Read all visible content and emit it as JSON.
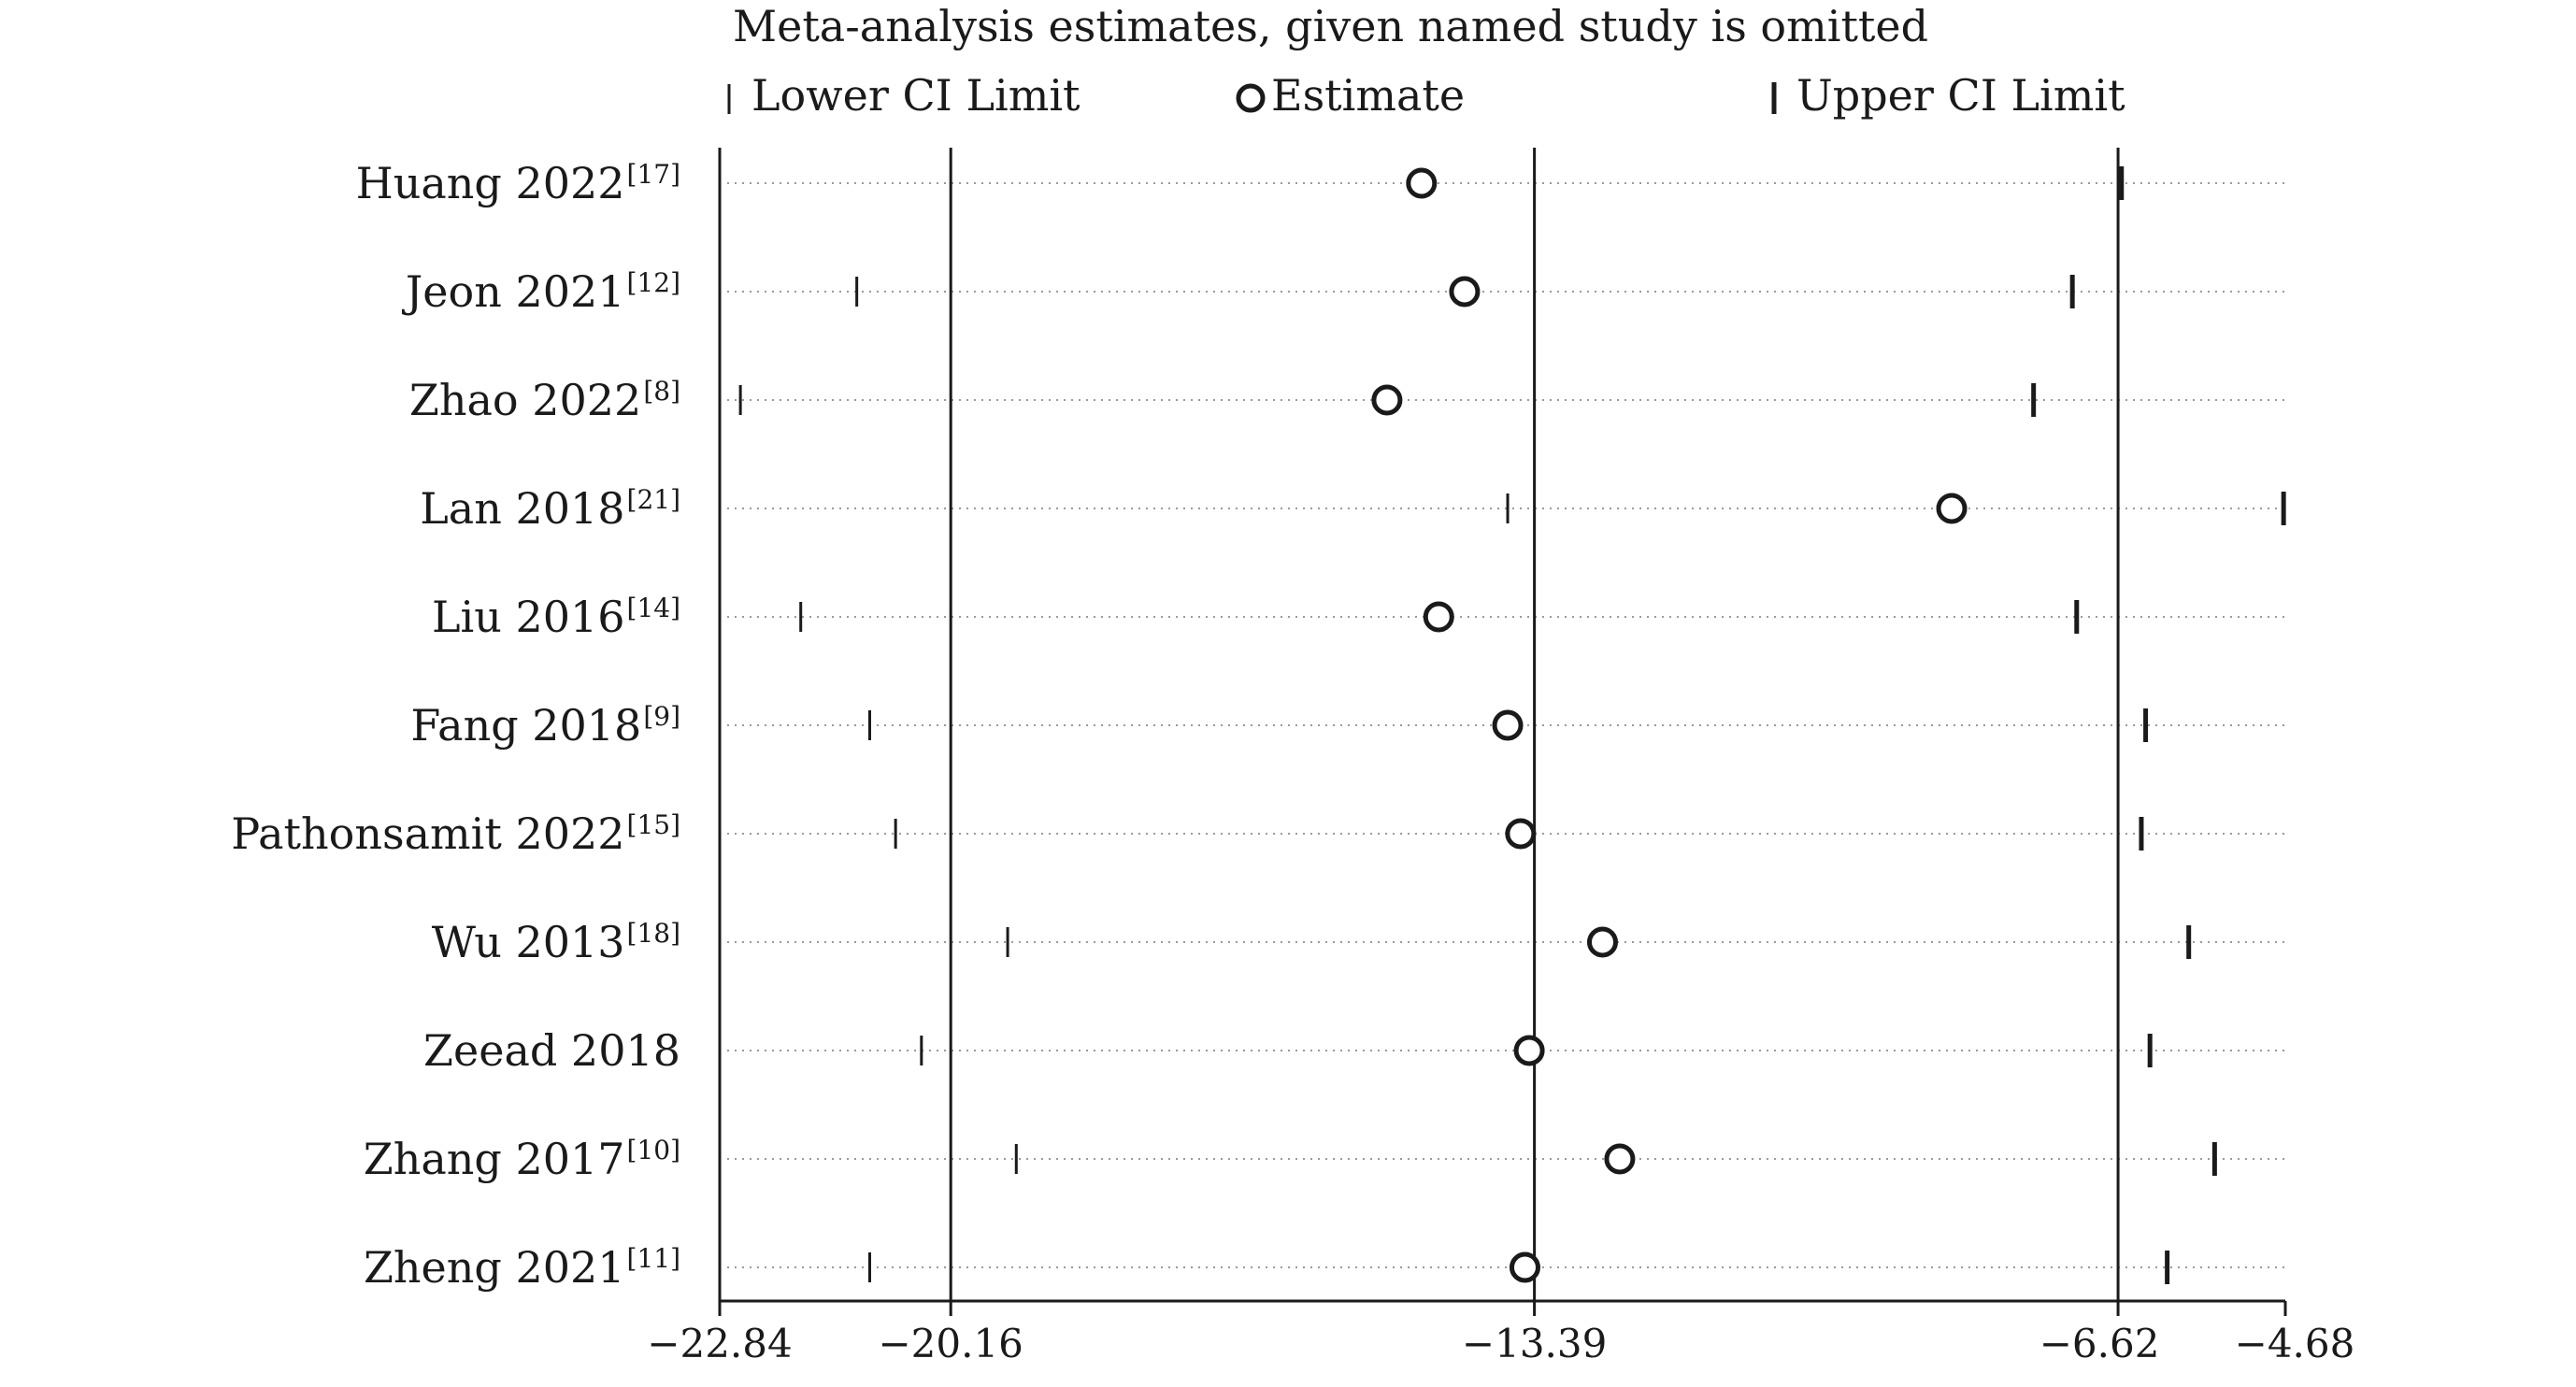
{
  "chart_data": {
    "type": "scatter",
    "title": "Meta-analysis estimates, given named study is omitted",
    "legend": {
      "placement": "top",
      "entries": [
        "Lower CI Limit",
        "Estimate",
        "Upper CI Limit"
      ]
    },
    "xlim": [
      -22.84,
      -4.68
    ],
    "x_ticks": [
      -22.84,
      -20.16,
      -13.39,
      -6.62,
      -4.68
    ],
    "x_tick_labels": [
      "−22.84",
      "−20.16",
      "−13.39",
      "−6.62",
      "−4.68"
    ],
    "reference_lines": [
      -20.16,
      -13.39,
      -6.62
    ],
    "grid": "dotted horizontal guides per study",
    "studies": [
      {
        "name": "Huang 2022",
        "ref": "[17]",
        "lower": -22.84,
        "estimate": -14.7,
        "upper": -6.58
      },
      {
        "name": "Jeon 2021",
        "ref": "[12]",
        "lower": -21.25,
        "estimate": -14.2,
        "upper": -7.15
      },
      {
        "name": "Zhao 2022",
        "ref": "[8]",
        "lower": -22.6,
        "estimate": -15.1,
        "upper": -7.6
      },
      {
        "name": "Lan 2018",
        "ref": "[21]",
        "lower": -13.7,
        "estimate": -8.55,
        "upper": -4.7
      },
      {
        "name": "Liu 2016",
        "ref": "[14]",
        "lower": -21.9,
        "estimate": -14.5,
        "upper": -7.1
      },
      {
        "name": "Fang 2018",
        "ref": "[9]",
        "lower": -21.1,
        "estimate": -13.7,
        "upper": -6.3
      },
      {
        "name": "Pathonsamit 2022",
        "ref": "[15]",
        "lower": -20.8,
        "estimate": -13.55,
        "upper": -6.35
      },
      {
        "name": "Wu 2013",
        "ref": "[18]",
        "lower": -19.5,
        "estimate": -12.6,
        "upper": -5.8
      },
      {
        "name": "Zeead 2018",
        "ref": "",
        "lower": -20.5,
        "estimate": -13.45,
        "upper": -6.25
      },
      {
        "name": "Zhang 2017",
        "ref": "[10]",
        "lower": -19.4,
        "estimate": -12.4,
        "upper": -5.5
      },
      {
        "name": "Zheng 2021",
        "ref": "[11]",
        "lower": -21.1,
        "estimate": -13.5,
        "upper": -6.05
      }
    ]
  }
}
